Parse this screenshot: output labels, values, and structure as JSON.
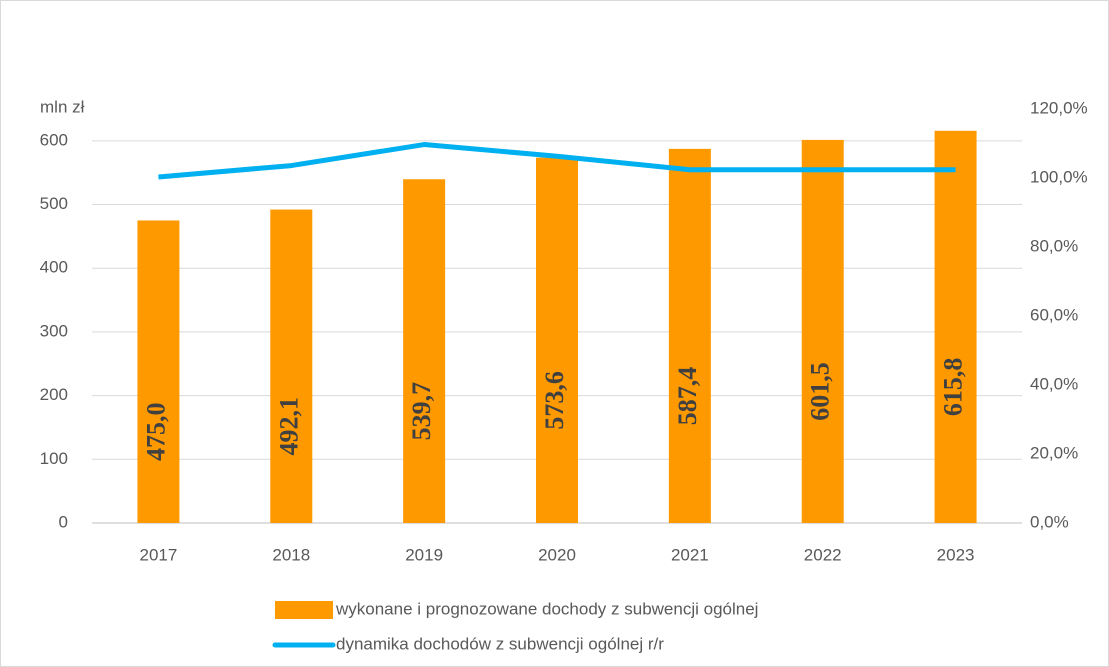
{
  "chart_data": {
    "type": "bar",
    "y_axis_label": "mln zł",
    "categories": [
      "2017",
      "2018",
      "2019",
      "2020",
      "2021",
      "2022",
      "2023"
    ],
    "series": [
      {
        "name": "wykonane i prognozowane dochody z subwencji ogólnej",
        "color": "#ff9900",
        "type": "bar",
        "values": [
          475.0,
          492.1,
          539.7,
          573.6,
          587.4,
          601.5,
          615.8
        ],
        "value_labels": [
          "475,0",
          "492,1",
          "539,7",
          "573,6",
          "587,4",
          "601,5",
          "615,8"
        ]
      },
      {
        "name": "dynamika dochodów z subwencji ogólnej r/r",
        "color": "#00b0f0",
        "type": "line",
        "axis": "y2",
        "values": [
          100.3,
          103.6,
          109.7,
          106.3,
          102.4,
          102.4,
          102.4
        ]
      }
    ],
    "ylim": [
      0,
      650
    ],
    "yticks": [
      0,
      100,
      200,
      300,
      400,
      500,
      600
    ],
    "y2lim": [
      0,
      120
    ],
    "y2ticks": [
      {
        "value": 0,
        "label": "0,0%"
      },
      {
        "value": 20,
        "label": "20,0%"
      },
      {
        "value": 40,
        "label": "40,0%"
      },
      {
        "value": 60,
        "label": "60,0%"
      },
      {
        "value": 80,
        "label": "80,0%"
      },
      {
        "value": 100,
        "label": "100,0%"
      },
      {
        "value": 120,
        "label": "120,0%"
      }
    ],
    "grid": true
  }
}
